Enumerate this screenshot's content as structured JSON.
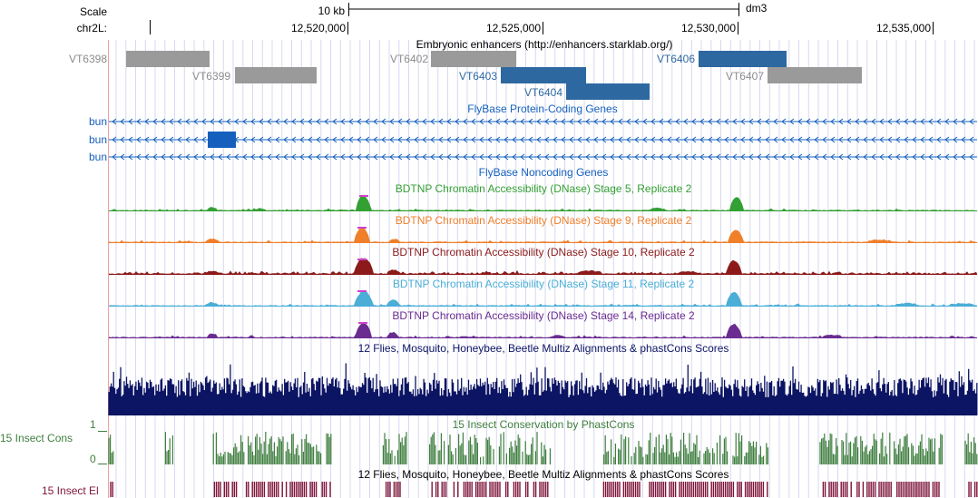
{
  "ruler": {
    "scale_label": "Scale",
    "chrom_label": "chr2L:",
    "scale_bar_label": "10 kb",
    "assembly": "dm3",
    "positions": [
      "12,520,000",
      "12,525,000",
      "12,530,000",
      "12,535,000"
    ]
  },
  "tracks": {
    "enhancers": {
      "title": "Embryonic enhancers (http://enhancers.starklab.org/)",
      "items": [
        {
          "name": "VT6398",
          "active": false
        },
        {
          "name": "VT6399",
          "active": false
        },
        {
          "name": "VT6402",
          "active": false
        },
        {
          "name": "VT6403",
          "active": true
        },
        {
          "name": "VT6404",
          "active": true
        },
        {
          "name": "VT6406",
          "active": true
        },
        {
          "name": "VT6407",
          "active": false
        }
      ]
    },
    "genes": {
      "title": "FlyBase Protein-Coding Genes",
      "transcripts": [
        "bun",
        "bun",
        "bun"
      ]
    },
    "noncoding": {
      "title": "FlyBase Noncoding Genes"
    },
    "dnase": [
      {
        "title": "BDTNP Chromatin Accessibility (DNase) Stage 5, Replicate 2",
        "color": "#33a033"
      },
      {
        "title": "BDTNP Chromatin Accessibility (DNase) Stage 9, Replicate 2",
        "color": "#f07f2a"
      },
      {
        "title": "BDTNP Chromatin Accessibility (DNase) Stage 10, Replicate 2",
        "color": "#8c1a1a"
      },
      {
        "title": "BDTNP Chromatin Accessibility (DNase) Stage 11, Replicate 2",
        "color": "#4aaed6"
      },
      {
        "title": "BDTNP Chromatin Accessibility (DNase) Stage 14, Replicate 2",
        "color": "#6a2c90"
      }
    ],
    "multiz": {
      "title": "12 Flies, Mosquito, Honeybee, Beetle Multiz Alignments & phastCons Scores",
      "color": "#0c1464"
    },
    "phastcons": {
      "title": "15 Insect Conservation by PhastCons",
      "side_label": "15 Insect Cons",
      "y_max": "1",
      "y_min": "0",
      "color": "#3f7f3f"
    },
    "elements": {
      "title": "12 Flies, Mosquito, Honeybee, Beetle Multiz Alignments & phastCons Scores",
      "side_label": "15 Insect El",
      "color": "#7f1539"
    }
  },
  "colors": {
    "active_blue": "#2e68a1",
    "inactive_gray": "#9a9a9a",
    "gene_blue": "#1560bd",
    "grid": "#d8d8f0",
    "left_line": "#f0a0a0"
  }
}
